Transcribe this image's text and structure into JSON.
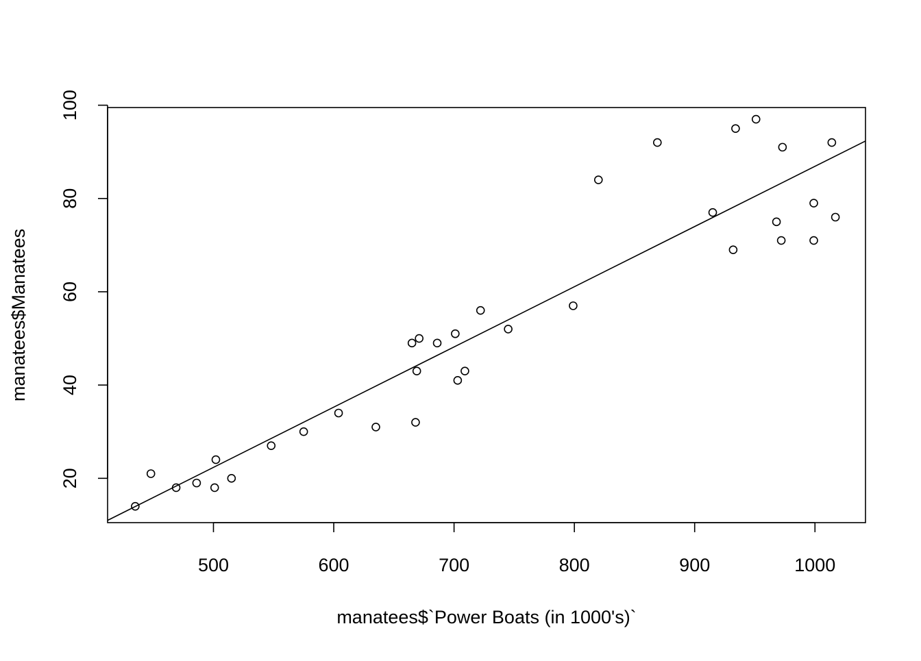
{
  "chart_data": {
    "type": "scatter",
    "title": "",
    "xlabel": "manatees$`Power Boats (in 1000's)`",
    "ylabel": "manatees$Manatees",
    "xlim": [
      412,
      1042
    ],
    "ylim": [
      10.5,
      99.5
    ],
    "xticks": [
      "500",
      "600",
      "700",
      "800",
      "900",
      "1000"
    ],
    "yticks": [
      "20",
      "40",
      "60",
      "80",
      "100"
    ],
    "grid": false,
    "legend": "none",
    "point_marker": "open-circle",
    "colors": {
      "points": "#000000",
      "line": "#000000",
      "axes": "#000000"
    },
    "series": [
      {
        "points": [
          {
            "x": 435,
            "y": 14
          },
          {
            "x": 448,
            "y": 21
          },
          {
            "x": 469,
            "y": 18
          },
          {
            "x": 486,
            "y": 19
          },
          {
            "x": 501,
            "y": 18
          },
          {
            "x": 502,
            "y": 24
          },
          {
            "x": 515,
            "y": 20
          },
          {
            "x": 548,
            "y": 27
          },
          {
            "x": 575,
            "y": 30
          },
          {
            "x": 604,
            "y": 34
          },
          {
            "x": 635,
            "y": 31
          },
          {
            "x": 665,
            "y": 49
          },
          {
            "x": 668,
            "y": 32
          },
          {
            "x": 669,
            "y": 43
          },
          {
            "x": 671,
            "y": 50
          },
          {
            "x": 686,
            "y": 49
          },
          {
            "x": 701,
            "y": 51
          },
          {
            "x": 703,
            "y": 41
          },
          {
            "x": 709,
            "y": 43
          },
          {
            "x": 722,
            "y": 56
          },
          {
            "x": 745,
            "y": 52
          },
          {
            "x": 799,
            "y": 57
          },
          {
            "x": 820,
            "y": 84
          },
          {
            "x": 869,
            "y": 92
          },
          {
            "x": 915,
            "y": 77
          },
          {
            "x": 932,
            "y": 69
          },
          {
            "x": 934,
            "y": 95
          },
          {
            "x": 951,
            "y": 97
          },
          {
            "x": 968,
            "y": 75
          },
          {
            "x": 972,
            "y": 71
          },
          {
            "x": 973,
            "y": 91
          },
          {
            "x": 999,
            "y": 79
          },
          {
            "x": 999,
            "y": 71
          },
          {
            "x": 1014,
            "y": 92
          },
          {
            "x": 1017,
            "y": 76
          }
        ]
      }
    ],
    "regression_line": {
      "type": "linear_fit",
      "intercept": -42.2,
      "slope": 0.1291
    }
  }
}
